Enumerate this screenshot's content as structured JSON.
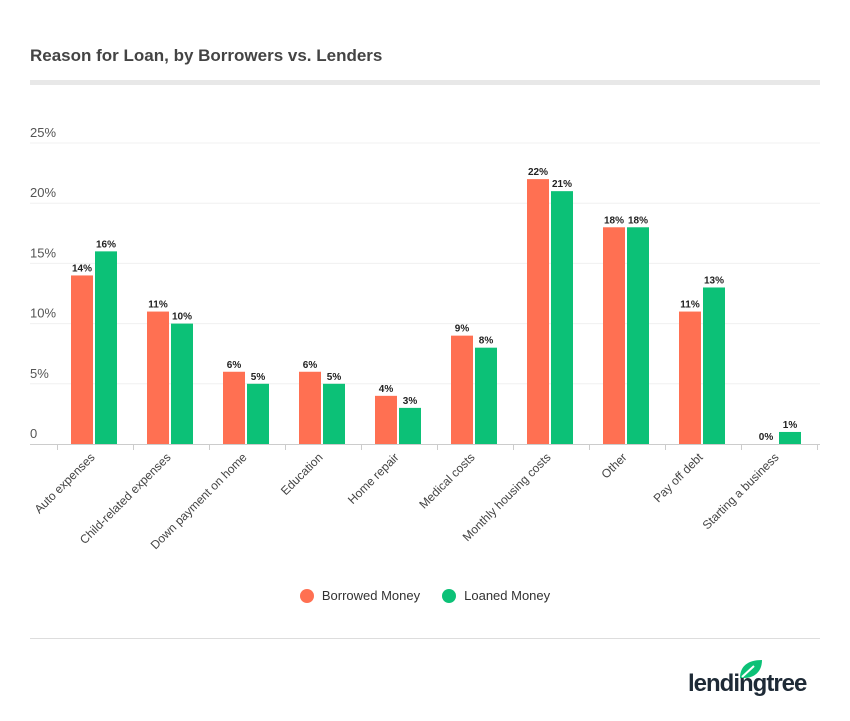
{
  "chart_data": {
    "type": "bar",
    "title": "Reason for Loan, by Borrowers vs. Lenders",
    "categories": [
      "Auto expenses",
      "Child-related expenses",
      "Down payment on home",
      "Education",
      "Home repair",
      "Medical costs",
      "Monthly housing costs",
      "Other",
      "Pay off debt",
      "Starting a business"
    ],
    "series": [
      {
        "name": "Borrowed Money",
        "color": "#ff7052",
        "values": [
          14,
          11,
          6,
          6,
          4,
          9,
          22,
          18,
          11,
          0
        ]
      },
      {
        "name": "Loaned Money",
        "color": "#0cc177",
        "values": [
          16,
          10,
          5,
          5,
          3,
          8,
          21,
          18,
          13,
          1
        ]
      }
    ],
    "ylim": [
      0,
      25
    ],
    "yticks": [
      0,
      5,
      10,
      15,
      20,
      25
    ],
    "ytick_labels": [
      "0",
      "5%",
      "10%",
      "15%",
      "20%",
      "25%"
    ],
    "value_suffix": "%",
    "grid": true,
    "legend_placement": "bottom"
  },
  "brand": {
    "logo_text": "lendingtree",
    "leaf_color": "#0cc177"
  }
}
